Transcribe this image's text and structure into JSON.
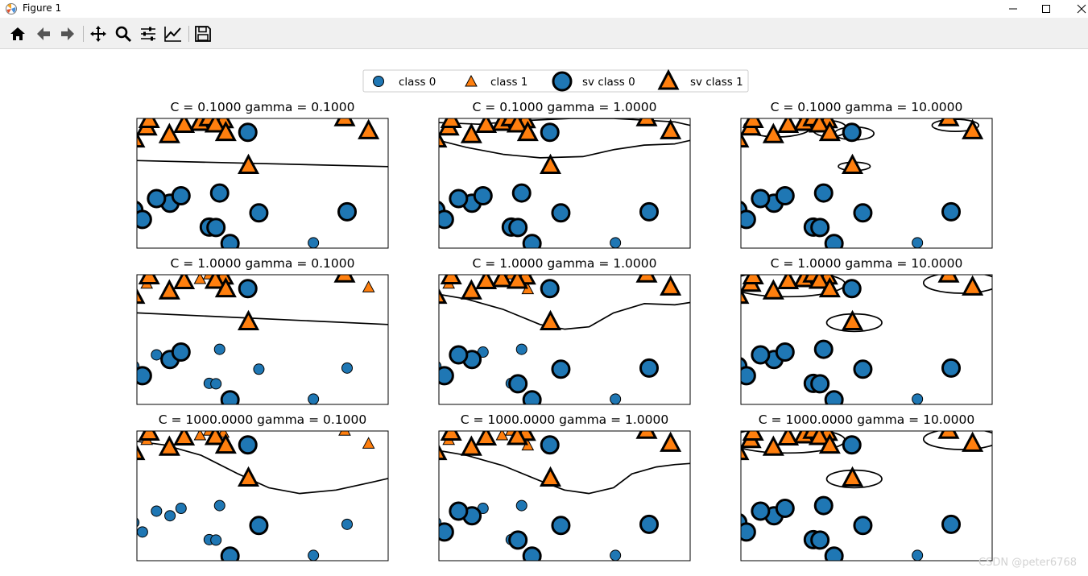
{
  "window": {
    "title": "Figure 1"
  },
  "toolbar": {
    "icons": [
      "home-icon",
      "back-icon",
      "forward-icon",
      "pan-icon",
      "zoom-icon",
      "configure-subplots-icon",
      "edit-axes-icon",
      "save-icon"
    ]
  },
  "watermark": "CSDN @peter6768",
  "colors": {
    "class0": "#1f77b4",
    "class1": "#ff7f0e",
    "edge": "#000000"
  },
  "legend": {
    "placement": "upper-center",
    "entries": [
      "class 0",
      "class 1",
      "sv class 0",
      "sv class 1"
    ]
  },
  "chart_data": {
    "type": "scatter",
    "x_range": [
      8.15,
      12.25
    ],
    "y_range": [
      -0.4,
      5.2
    ],
    "points": [
      {
        "x": 9.96,
        "y": 4.6,
        "class": 0
      },
      {
        "x": 11.03,
        "y": -0.17,
        "class": 0
      },
      {
        "x": 11.54,
        "y": 5.21,
        "class": 1
      },
      {
        "x": 8.69,
        "y": 1.54,
        "class": 0
      },
      {
        "x": 8.11,
        "y": 4.29,
        "class": 1
      },
      {
        "x": 8.31,
        "y": 4.81,
        "class": 1
      },
      {
        "x": 11.93,
        "y": 4.65,
        "class": 1
      },
      {
        "x": 9.67,
        "y": -0.2,
        "class": 0
      },
      {
        "x": 8.35,
        "y": 5.13,
        "class": 1
      },
      {
        "x": 8.68,
        "y": 4.48,
        "class": 1
      },
      {
        "x": 9.18,
        "y": 5.01,
        "class": 1
      },
      {
        "x": 9.33,
        "y": 5.21,
        "class": 1
      },
      {
        "x": 9.56,
        "y": 5.12,
        "class": 1
      },
      {
        "x": 8.47,
        "y": 1.74,
        "class": 0
      },
      {
        "x": 8.87,
        "y": 1.86,
        "class": 0
      },
      {
        "x": 8.1,
        "y": 1.25,
        "class": 0
      },
      {
        "x": 9.5,
        "y": 1.98,
        "class": 0
      },
      {
        "x": 9.43,
        "y": 4.94,
        "class": 1
      },
      {
        "x": 9.6,
        "y": 4.57,
        "class": 1
      },
      {
        "x": 8.24,
        "y": 0.84,
        "class": 0
      },
      {
        "x": 9.33,
        "y": 0.51,
        "class": 0
      },
      {
        "x": 9.97,
        "y": 3.15,
        "class": 1
      },
      {
        "x": 10.14,
        "y": 1.12,
        "class": 0
      },
      {
        "x": 11.58,
        "y": 1.17,
        "class": 0
      },
      {
        "x": 9.44,
        "y": 0.49,
        "class": 0
      },
      {
        "x": 8.92,
        "y": 4.92,
        "class": 1
      }
    ],
    "subplots": [
      {
        "C": 0.1,
        "gamma": 0.1,
        "title": "C = 0.1000 gamma = 0.1000",
        "sv": [
          0,
          2,
          3,
          4,
          5,
          6,
          7,
          8,
          9,
          10,
          11,
          12,
          13,
          14,
          15,
          16,
          17,
          18,
          19,
          20,
          21,
          22,
          23,
          24,
          25
        ],
        "boundary": [
          [
            [
              8.15,
              3.38
            ],
            [
              12.25,
              3.12
            ]
          ]
        ]
      },
      {
        "C": 0.1,
        "gamma": 1.0,
        "title": "C = 0.1000 gamma = 1.0000",
        "sv": [
          0,
          2,
          3,
          4,
          5,
          6,
          7,
          8,
          9,
          10,
          11,
          12,
          13,
          14,
          15,
          16,
          17,
          18,
          19,
          20,
          21,
          22,
          23,
          24,
          25
        ],
        "boundary": [
          [
            [
              8.15,
              5.02
            ],
            [
              8.8,
              4.95
            ],
            [
              9.5,
              5.1
            ],
            [
              10.3,
              5.2
            ],
            [
              11.0,
              5.2
            ],
            [
              12.0,
              5.05
            ],
            [
              12.25,
              4.9
            ]
          ],
          [
            [
              8.15,
              4.25
            ],
            [
              8.6,
              3.95
            ],
            [
              9.2,
              3.65
            ],
            [
              9.8,
              3.5
            ],
            [
              10.5,
              3.55
            ],
            [
              11.0,
              3.85
            ],
            [
              11.5,
              4.05
            ],
            [
              12.0,
              4.1
            ],
            [
              12.25,
              4.25
            ]
          ]
        ]
      },
      {
        "C": 0.1,
        "gamma": 10.0,
        "title": "C = 0.1000 gamma = 10.0000",
        "sv": [
          0,
          2,
          3,
          4,
          5,
          6,
          7,
          8,
          9,
          10,
          11,
          12,
          13,
          14,
          15,
          16,
          17,
          18,
          19,
          20,
          21,
          22,
          23,
          24,
          25
        ],
        "ellipses": [
          [
            8.75,
            4.85,
            0.55,
            0.45
          ],
          [
            9.6,
            4.75,
            0.28,
            0.35
          ],
          [
            10.0,
            4.55,
            0.32,
            0.28
          ],
          [
            11.65,
            4.9,
            0.38,
            0.26
          ],
          [
            10.0,
            3.13,
            0.26,
            0.18
          ]
        ]
      },
      {
        "C": 1.0,
        "gamma": 0.1,
        "title": "C = 1.0000 gamma = 0.1000",
        "sv": [
          0,
          2,
          3,
          4,
          7,
          8,
          9,
          12,
          14,
          17,
          18,
          19,
          21,
          25
        ],
        "boundary": [
          [
            [
              8.15,
              3.55
            ],
            [
              12.25,
              3.05
            ]
          ]
        ]
      },
      {
        "C": 1.0,
        "gamma": 1.0,
        "title": "C = 1.0000 gamma = 1.0000",
        "sv": [
          0,
          2,
          3,
          4,
          6,
          7,
          8,
          9,
          10,
          12,
          13,
          17,
          19,
          21,
          22,
          23,
          24,
          25
        ],
        "boundary": [
          [
            [
              8.15,
              4.35
            ],
            [
              8.6,
              4.15
            ],
            [
              9.2,
              3.7
            ],
            [
              9.8,
              3.05
            ],
            [
              10.2,
              2.85
            ],
            [
              10.6,
              2.95
            ],
            [
              11.0,
              3.55
            ],
            [
              11.5,
              3.95
            ],
            [
              12.0,
              3.9
            ],
            [
              12.25,
              4.0
            ]
          ]
        ]
      },
      {
        "C": 1.0,
        "gamma": 10.0,
        "title": "C = 1.0000 gamma = 10.0000",
        "sv": [
          0,
          2,
          3,
          4,
          5,
          6,
          7,
          8,
          9,
          10,
          11,
          12,
          13,
          14,
          15,
          16,
          17,
          18,
          19,
          20,
          21,
          22,
          23,
          24,
          25
        ],
        "ellipses": [
          [
            8.9,
            4.8,
            0.95,
            0.55
          ],
          [
            11.75,
            4.85,
            0.62,
            0.45
          ],
          [
            10.0,
            3.13,
            0.45,
            0.38
          ]
        ]
      },
      {
        "C": 1000.0,
        "gamma": 0.1,
        "title": "C = 1000.0000 gamma = 0.1000",
        "sv": [
          0,
          4,
          7,
          8,
          9,
          17,
          18,
          21,
          22,
          25
        ],
        "boundary": [
          [
            [
              8.15,
              4.75
            ],
            [
              8.6,
              4.6
            ],
            [
              9.2,
              4.15
            ],
            [
              9.8,
              3.35
            ],
            [
              10.3,
              2.75
            ],
            [
              10.8,
              2.5
            ],
            [
              11.4,
              2.65
            ],
            [
              12.0,
              3.0
            ],
            [
              12.25,
              3.15
            ]
          ]
        ]
      },
      {
        "C": 1000.0,
        "gamma": 1.0,
        "title": "C = 1000.0000 gamma = 1.0000",
        "sv": [
          0,
          2,
          3,
          4,
          6,
          7,
          8,
          9,
          12,
          13,
          17,
          19,
          21,
          22,
          23,
          24,
          25
        ],
        "boundary": [
          [
            [
              8.15,
              4.35
            ],
            [
              8.6,
              4.15
            ],
            [
              9.2,
              3.7
            ],
            [
              9.8,
              3.05
            ],
            [
              10.2,
              2.65
            ],
            [
              10.6,
              2.5
            ],
            [
              11.0,
              2.75
            ],
            [
              11.3,
              3.35
            ],
            [
              11.7,
              3.65
            ],
            [
              12.0,
              3.75
            ],
            [
              12.25,
              3.8
            ]
          ]
        ]
      },
      {
        "C": 1000.0,
        "gamma": 10.0,
        "title": "C = 1000.0000 gamma = 10.0000",
        "sv": [
          0,
          2,
          3,
          4,
          5,
          6,
          7,
          8,
          9,
          10,
          11,
          12,
          13,
          14,
          15,
          16,
          17,
          18,
          19,
          20,
          21,
          22,
          23,
          24,
          25
        ],
        "ellipses": [
          [
            8.9,
            4.8,
            0.95,
            0.55
          ],
          [
            11.75,
            4.85,
            0.62,
            0.45
          ],
          [
            10.0,
            3.13,
            0.45,
            0.38
          ]
        ]
      }
    ]
  }
}
